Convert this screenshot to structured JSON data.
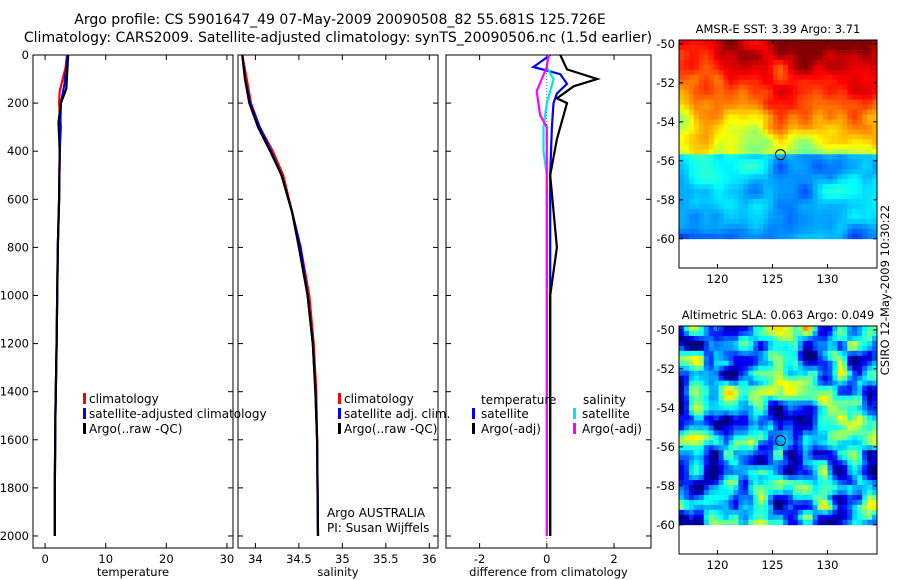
{
  "title": {
    "line1": "Argo profile: CS 5901647_49 07-May-2009 20090508_82 55.681S 125.726E",
    "line2": "Climatology: CARS2009. Satellite-adjusted climatology: synTS_20090506.nc (1.5d earlier)"
  },
  "colors": {
    "climatology": "#ff0000",
    "satellite": "#0000ff",
    "argo": "#000000",
    "sal_satellite": "#00e5ee",
    "sal_argo": "#ff00ff"
  },
  "chart_data": [
    {
      "type": "line",
      "panel": "temperature",
      "xlabel": "temperature",
      "ylabel": "",
      "xlim": [
        -2,
        31
      ],
      "ylim": [
        2050,
        0
      ],
      "y_reversed": true,
      "xticks": [
        0,
        10,
        20,
        30
      ],
      "yticks": [
        0,
        200,
        400,
        600,
        800,
        1000,
        1200,
        1400,
        1600,
        1800,
        2000
      ],
      "grid": false,
      "legend": {
        "placement": "lower-left",
        "entries": [
          "climatology",
          "satellite-adjusted climatology",
          "Argo(..raw -QC)"
        ]
      },
      "series": [
        {
          "name": "climatology",
          "color_key": "climatology",
          "x": [
            3.6,
            3.4,
            2.4,
            2.3,
            2.6,
            2.4,
            2.3,
            2.1,
            2.0,
            1.9,
            1.7,
            1.6,
            1.6
          ],
          "y": [
            0,
            50,
            150,
            200,
            300,
            400,
            600,
            800,
            1000,
            1200,
            1500,
            1800,
            2000
          ]
        },
        {
          "name": "satellite-adjusted climatology",
          "color_key": "satellite",
          "x": [
            3.7,
            3.5,
            3.2,
            2.6,
            2.5,
            2.4,
            2.3,
            2.1,
            2.0,
            1.9,
            1.7,
            1.6,
            1.6
          ],
          "y": [
            0,
            50,
            120,
            200,
            300,
            400,
            600,
            800,
            1000,
            1200,
            1500,
            1800,
            2000
          ]
        },
        {
          "name": "Argo(..raw -QC)",
          "color_key": "argo",
          "x": [
            3.8,
            3.7,
            3.5,
            2.6,
            2.2,
            2.4,
            2.3,
            2.1,
            2.0,
            1.9,
            1.7,
            1.6,
            1.6
          ],
          "y": [
            0,
            50,
            140,
            200,
            280,
            400,
            600,
            800,
            1000,
            1200,
            1500,
            1800,
            2000
          ]
        }
      ]
    },
    {
      "type": "line",
      "panel": "salinity",
      "xlabel": "salinity",
      "ylabel": "",
      "xlim": [
        33.8,
        36.1
      ],
      "ylim": [
        2050,
        0
      ],
      "y_reversed": true,
      "xticks": [
        34,
        34.5,
        35,
        35.5,
        36
      ],
      "xticklabels": [
        "34",
        "34.5",
        "35",
        "35.5",
        "36"
      ],
      "grid": false,
      "legend": {
        "placement": "lower-right",
        "entries": [
          "climatology",
          "satellite adj. clim.",
          "Argo(..raw -QC)"
        ]
      },
      "annotations": [
        "Argo AUSTRALIA",
        "PI: Susan Wijffels"
      ],
      "series": [
        {
          "name": "climatology",
          "color_key": "climatology",
          "x": [
            33.85,
            33.9,
            33.95,
            34.05,
            34.2,
            34.32,
            34.42,
            34.52,
            34.62,
            34.67,
            34.7,
            34.71,
            34.72
          ],
          "y": [
            0,
            100,
            200,
            300,
            400,
            500,
            650,
            800,
            1000,
            1200,
            1400,
            1600,
            2000
          ]
        },
        {
          "name": "satellite adj. clim.",
          "color_key": "satellite",
          "x": [
            33.85,
            33.88,
            33.94,
            34.05,
            34.18,
            34.3,
            34.42,
            34.52,
            34.6,
            34.66,
            34.69,
            34.71,
            34.72
          ],
          "y": [
            0,
            100,
            200,
            300,
            400,
            500,
            650,
            800,
            1000,
            1200,
            1400,
            1600,
            2000
          ]
        },
        {
          "name": "Argo(..raw -QC)",
          "color_key": "argo",
          "x": [
            33.85,
            33.88,
            33.93,
            34.03,
            34.17,
            34.3,
            34.42,
            34.5,
            34.6,
            34.66,
            34.69,
            34.71,
            34.72
          ],
          "y": [
            0,
            100,
            200,
            300,
            400,
            500,
            650,
            800,
            1000,
            1200,
            1400,
            1600,
            2000
          ]
        }
      ]
    },
    {
      "type": "line",
      "panel": "difference",
      "xlabel": "difference from climatology",
      "ylabel": "",
      "xlim": [
        -3,
        3.1
      ],
      "ylim": [
        2050,
        0
      ],
      "y_reversed": true,
      "xticks": [
        -2,
        0,
        2
      ],
      "grid": false,
      "legend": {
        "placement": "lower",
        "temperature_header": "temperature",
        "salinity_header": "salinity",
        "entries": [
          "satellite",
          "Argo(-adj)",
          "satellite",
          "Argo(-adj)"
        ]
      },
      "series": [
        {
          "name": "temperature satellite",
          "color_key": "satellite",
          "x": [
            0.1,
            -0.4,
            0.4,
            0.6,
            0.3,
            0.2,
            0.15,
            0.1,
            0.1,
            0.1,
            0.1,
            0.1,
            0.1
          ],
          "y": [
            0,
            50,
            80,
            120,
            160,
            200,
            300,
            500,
            800,
            1000,
            1400,
            1800,
            2000
          ]
        },
        {
          "name": "temperature Argo(-adj)",
          "color_key": "argo",
          "x": [
            0.4,
            0.6,
            1.5,
            0.8,
            0.3,
            0.6,
            0.3,
            0.1,
            0.3,
            0.1,
            0.1,
            0.1,
            0.1
          ],
          "y": [
            0,
            60,
            100,
            130,
            180,
            200,
            350,
            500,
            800,
            1000,
            1400,
            1800,
            2000
          ]
        },
        {
          "name": "salinity satellite",
          "color_key": "sal_satellite",
          "x": [
            0.05,
            0.0,
            0.2,
            0.1,
            0.0,
            -0.1,
            -0.1,
            0.0,
            0.0,
            0.0,
            0.0,
            0.0,
            0.0
          ],
          "y": [
            0,
            50,
            100,
            150,
            200,
            300,
            400,
            500,
            800,
            1000,
            1400,
            1800,
            2000
          ]
        },
        {
          "name": "salinity Argo(-adj)",
          "color_key": "sal_argo",
          "x": [
            0.05,
            0.0,
            -0.3,
            -0.2,
            0.0,
            0.0,
            0.0,
            0.0,
            0.0,
            0.0,
            0.0,
            0.0,
            0.0
          ],
          "y": [
            0,
            50,
            150,
            250,
            300,
            400,
            500,
            600,
            800,
            1000,
            1400,
            1800,
            2000
          ]
        }
      ]
    },
    {
      "type": "heatmap",
      "panel": "sst-map",
      "title": "AMSR-E SST: 3.39 Argo: 3.71",
      "xlabel": "",
      "ylabel": "",
      "xlim": [
        116.5,
        134.5
      ],
      "ylim": [
        -61.5,
        -49.8
      ],
      "xticks": [
        120,
        125,
        130
      ],
      "yticks": [
        -50,
        -52,
        -54,
        -56,
        -58,
        -60
      ],
      "data_extent_lat": [
        -60,
        -49.8
      ],
      "float_position": {
        "lon": 125.726,
        "lat": -55.681
      }
    },
    {
      "type": "heatmap",
      "panel": "sla-map",
      "title": "Altimetric SLA: 0.063 Argo: 0.049",
      "xlabel": "",
      "ylabel": "",
      "xlim": [
        116.5,
        134.5
      ],
      "ylim": [
        -61.5,
        -49.8
      ],
      "xticks": [
        120,
        125,
        130
      ],
      "yticks": [
        -50,
        -52,
        -54,
        -56,
        -58,
        -60
      ],
      "data_extent_lat": [
        -60,
        -49.8
      ],
      "float_position": {
        "lon": 125.726,
        "lat": -55.681
      }
    }
  ],
  "footer": {
    "credit": "CSIRO 12-May-2009 10:30:22"
  }
}
